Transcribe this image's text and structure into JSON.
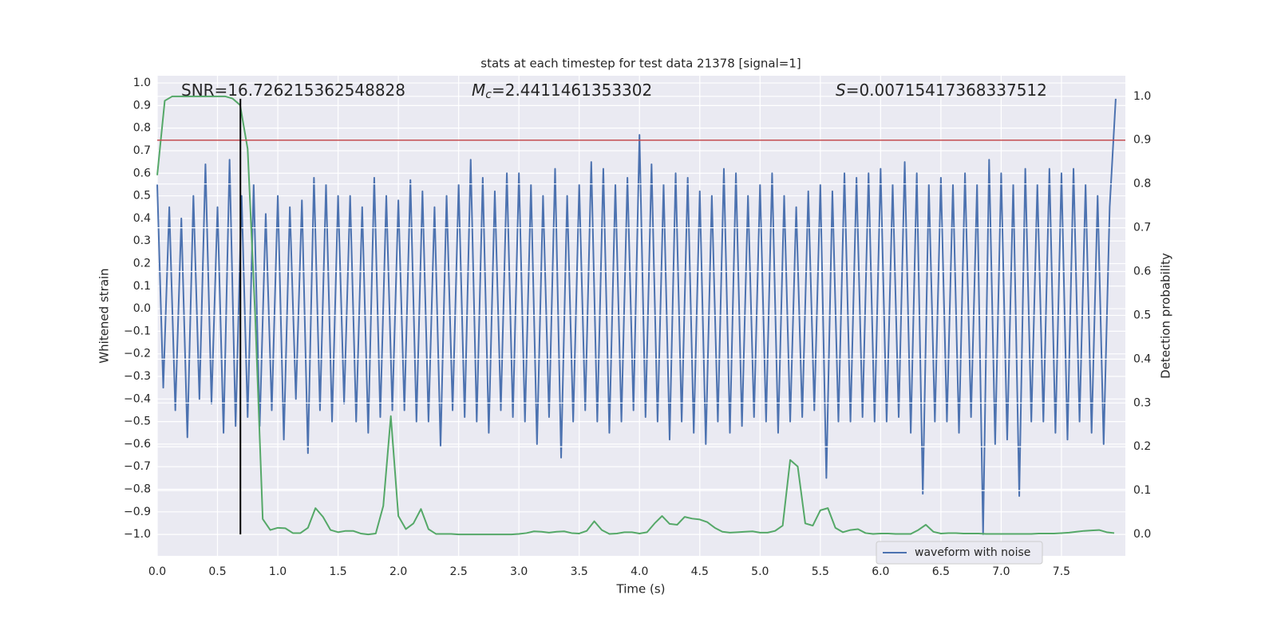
{
  "chart_data": {
    "type": "line",
    "title": "stats at each timestep for test data 21378 [signal=1]",
    "xlabel": "Time (s)",
    "ylabel": "Whitened strain",
    "y2label": "Detection probability",
    "xlim": [
      0,
      8.03
    ],
    "ylim": [
      -1.095,
      1.032
    ],
    "y2lim": [
      -0.049,
      1.047
    ],
    "grid": true,
    "legend": "lower right",
    "xticks": [
      {
        "value": 0,
        "label": "0.0"
      },
      0.5,
      {
        "value": 1,
        "label": "1.0"
      },
      1.5,
      {
        "value": 2,
        "label": "2.0"
      },
      2.5,
      {
        "value": 3,
        "label": "3.0"
      },
      3.5,
      {
        "value": 4,
        "label": "4.0"
      },
      4.5,
      {
        "value": 5,
        "label": "5.0"
      },
      5.5,
      {
        "value": 6,
        "label": "6.0"
      },
      6.5,
      {
        "value": 7,
        "label": "7.0"
      },
      7.5
    ],
    "yticks": [
      {
        "value": -1,
        "label": "−1.0"
      },
      {
        "value": -0.9,
        "label": "−0.9"
      },
      {
        "value": -0.8,
        "label": "−0.8"
      },
      {
        "value": -0.7,
        "label": "−0.7"
      },
      {
        "value": -0.6,
        "label": "−0.6"
      },
      {
        "value": -0.5,
        "label": "−0.5"
      },
      {
        "value": -0.4,
        "label": "−0.4"
      },
      {
        "value": -0.3,
        "label": "−0.3"
      },
      {
        "value": -0.2,
        "label": "−0.2"
      },
      {
        "value": -0.1,
        "label": "−0.1"
      },
      {
        "value": 0,
        "label": "0.0"
      },
      0.1,
      0.2,
      0.3,
      0.4,
      0.5,
      0.6,
      0.7,
      0.8,
      0.9,
      {
        "value": 1,
        "label": "1.0"
      }
    ],
    "y2ticks": [
      {
        "value": 0,
        "label": "0.0"
      },
      0.1,
      0.2,
      0.3,
      0.4,
      0.5,
      0.6,
      0.7,
      0.8,
      0.9,
      {
        "value": 1,
        "label": "1.0"
      }
    ],
    "series": [
      {
        "name": "waveform with noise",
        "color": "#4c72b0",
        "x": [
          0,
          0.05,
          0.1,
          0.15,
          0.2,
          0.25,
          0.3,
          0.35,
          0.4,
          0.45,
          0.5,
          0.55,
          0.6,
          0.65,
          0.7,
          0.75,
          0.8,
          0.85,
          0.9,
          0.95,
          1,
          1.05,
          1.1,
          1.15,
          1.2,
          1.25,
          1.3,
          1.35,
          1.4,
          1.45,
          1.5,
          1.55,
          1.6,
          1.65,
          1.7,
          1.75,
          1.8,
          1.85,
          1.9,
          1.95,
          2,
          2.05,
          2.1,
          2.15,
          2.2,
          2.25,
          2.3,
          2.35,
          2.4,
          2.45,
          2.5,
          2.55,
          2.6,
          2.65,
          2.7,
          2.75,
          2.8,
          2.85,
          2.9,
          2.95,
          3,
          3.05,
          3.1,
          3.15,
          3.2,
          3.25,
          3.3,
          3.35,
          3.4,
          3.45,
          3.5,
          3.55,
          3.6,
          3.65,
          3.7,
          3.75,
          3.8,
          3.85,
          3.9,
          3.95,
          4,
          4.05,
          4.1,
          4.15,
          4.2,
          4.25,
          4.3,
          4.35,
          4.4,
          4.45,
          4.5,
          4.55,
          4.6,
          4.65,
          4.7,
          4.75,
          4.8,
          4.85,
          4.9,
          4.95,
          5,
          5.05,
          5.1,
          5.15,
          5.2,
          5.25,
          5.3,
          5.35,
          5.4,
          5.45,
          5.5,
          5.55,
          5.6,
          5.65,
          5.7,
          5.75,
          5.8,
          5.85,
          5.9,
          5.95,
          6,
          6.05,
          6.1,
          6.15,
          6.2,
          6.25,
          6.3,
          6.35,
          6.4,
          6.45,
          6.5,
          6.55,
          6.6,
          6.65,
          6.7,
          6.75,
          6.8,
          6.85,
          6.9,
          6.95,
          7,
          7.05,
          7.1,
          7.15,
          7.2,
          7.25,
          7.3,
          7.35,
          7.4,
          7.45,
          7.5,
          7.55,
          7.6,
          7.65,
          7.7,
          7.75,
          7.8,
          7.85,
          7.9,
          7.95
        ],
        "values": [
          0.55,
          -0.35,
          0.45,
          -0.45,
          0.4,
          -0.57,
          0.5,
          -0.4,
          0.64,
          -0.42,
          0.45,
          -0.55,
          0.66,
          -0.52,
          0.5,
          -0.48,
          0.55,
          -0.52,
          0.42,
          -0.45,
          0.5,
          -0.58,
          0.45,
          -0.4,
          0.48,
          -0.64,
          0.58,
          -0.45,
          0.55,
          -0.5,
          0.5,
          -0.42,
          0.5,
          -0.5,
          0.45,
          -0.55,
          0.58,
          -0.48,
          0.5,
          -0.45,
          0.48,
          -0.45,
          0.57,
          -0.5,
          0.52,
          -0.5,
          0.45,
          -0.61,
          0.5,
          -0.45,
          0.55,
          -0.48,
          0.66,
          -0.5,
          0.58,
          -0.55,
          0.52,
          -0.45,
          0.6,
          -0.48,
          0.6,
          -0.5,
          0.55,
          -0.6,
          0.5,
          -0.48,
          0.62,
          -0.66,
          0.5,
          -0.5,
          0.55,
          -0.45,
          0.65,
          -0.5,
          0.62,
          -0.55,
          0.55,
          -0.5,
          0.58,
          -0.45,
          0.77,
          -0.48,
          0.64,
          -0.5,
          0.55,
          -0.58,
          0.6,
          -0.5,
          0.58,
          -0.55,
          0.52,
          -0.6,
          0.5,
          -0.5,
          0.62,
          -0.55,
          0.6,
          -0.52,
          0.5,
          -0.48,
          0.55,
          -0.5,
          0.6,
          -0.55,
          0.5,
          -0.5,
          0.45,
          -0.48,
          0.52,
          -0.45,
          0.55,
          -0.75,
          0.52,
          -0.5,
          0.6,
          -0.5,
          0.58,
          -0.48,
          0.6,
          -0.5,
          0.62,
          -0.5,
          0.55,
          -0.48,
          0.65,
          -0.55,
          0.6,
          -0.82,
          0.55,
          -0.5,
          0.58,
          -0.5,
          0.55,
          -0.55,
          0.6,
          -0.48,
          0.55,
          -1.0,
          0.66,
          -0.6,
          0.6,
          -0.58,
          0.55,
          -0.83,
          0.62,
          -0.5,
          0.55,
          -0.5,
          0.62,
          -0.55,
          0.6,
          -0.58,
          0.62,
          -0.5,
          0.55,
          -0.55,
          0.5,
          -0.6,
          0.45,
          0.93
        ]
      },
      {
        "color": "#55a868",
        "axis": "y2",
        "x": [
          0,
          0.0625,
          0.125,
          0.1875,
          0.25,
          0.3125,
          0.375,
          0.4375,
          0.5,
          0.5625,
          0.625,
          0.6875,
          0.75,
          0.8125,
          0.875,
          0.9375,
          1,
          1.0625,
          1.125,
          1.1875,
          1.25,
          1.3125,
          1.375,
          1.4375,
          1.5,
          1.5625,
          1.625,
          1.6875,
          1.75,
          1.8125,
          1.875,
          1.9375,
          2,
          2.0625,
          2.125,
          2.1875,
          2.25,
          2.3125,
          2.375,
          2.4375,
          2.5,
          2.5625,
          2.625,
          2.6875,
          2.75,
          2.8125,
          2.875,
          2.9375,
          3,
          3.0625,
          3.125,
          3.1875,
          3.25,
          3.3125,
          3.375,
          3.4375,
          3.5,
          3.5625,
          3.625,
          3.6875,
          3.75,
          3.8125,
          3.875,
          3.9375,
          4,
          4.0625,
          4.125,
          4.1875,
          4.25,
          4.3125,
          4.375,
          4.4375,
          4.5,
          4.5625,
          4.625,
          4.6875,
          4.75,
          4.8125,
          4.875,
          4.9375,
          5,
          5.0625,
          5.125,
          5.1875,
          5.25,
          5.3125,
          5.375,
          5.4375,
          5.5,
          5.5625,
          5.625,
          5.6875,
          5.75,
          5.8125,
          5.875,
          5.9375,
          6,
          6.0625,
          6.125,
          6.1875,
          6.25,
          6.3125,
          6.375,
          6.4375,
          6.5,
          6.5625,
          6.625,
          6.6875,
          6.75,
          6.8125,
          6.875,
          6.9375,
          7,
          7.0625,
          7.125,
          7.1875,
          7.25,
          7.3125,
          7.375,
          7.4375,
          7.5,
          7.5625,
          7.625,
          7.6875,
          7.75,
          7.8125,
          7.875,
          7.9375
        ],
        "values": [
          0.82,
          0.99,
          1.0,
          1.0,
          1.0,
          1.0,
          1.0,
          1.0,
          1.0,
          1.0,
          0.995,
          0.98,
          0.88,
          0.5,
          0.035,
          0.01,
          0.015,
          0.014,
          0.003,
          0.003,
          0.015,
          0.06,
          0.04,
          0.01,
          0.005,
          0.008,
          0.008,
          0.002,
          0.0,
          0.002,
          0.065,
          0.27,
          0.042,
          0.012,
          0.025,
          0.058,
          0.012,
          0.001,
          0.001,
          0.001,
          0.0,
          0.0,
          0.0,
          0.0,
          0.0,
          0.0,
          0.0,
          0.0,
          0.001,
          0.003,
          0.007,
          0.006,
          0.004,
          0.006,
          0.007,
          0.003,
          0.002,
          0.008,
          0.03,
          0.01,
          0.001,
          0.002,
          0.005,
          0.005,
          0.002,
          0.005,
          0.025,
          0.042,
          0.024,
          0.022,
          0.04,
          0.036,
          0.034,
          0.028,
          0.015,
          0.006,
          0.004,
          0.005,
          0.006,
          0.007,
          0.004,
          0.004,
          0.008,
          0.02,
          0.17,
          0.155,
          0.025,
          0.02,
          0.055,
          0.06,
          0.015,
          0.005,
          0.01,
          0.012,
          0.003,
          0.001,
          0.002,
          0.002,
          0.001,
          0.001,
          0.001,
          0.01,
          0.022,
          0.006,
          0.002,
          0.003,
          0.003,
          0.002,
          0.002,
          0.002,
          0.001,
          0.001,
          0.001,
          0.001,
          0.001,
          0.001,
          0.001,
          0.002,
          0.002,
          0.002,
          0.003,
          0.004,
          0.006,
          0.008,
          0.009,
          0.01,
          0.005,
          0.003
        ]
      }
    ],
    "hline": {
      "y2": 0.9,
      "color": "#c44e52"
    },
    "vline": {
      "x": 0.69,
      "y": [
        -1.0,
        0.93
      ],
      "color": "#000000"
    },
    "annotations": [
      {
        "text": "SNR=16.726215362548828"
      },
      {
        "symbol": "M",
        "subscript": "c",
        "text": "=2.4411461353302"
      },
      {
        "symbol": "S",
        "text": "=0.00715417368337512"
      }
    ]
  }
}
